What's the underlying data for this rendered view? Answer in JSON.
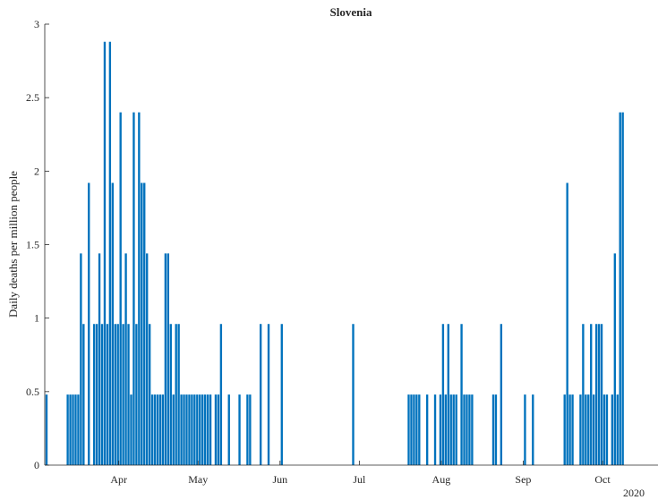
{
  "chart_data": {
    "type": "bar",
    "title": "Slovenia",
    "ylabel": "Daily deaths per million people",
    "xlabel": "",
    "ylim": [
      0,
      3
    ],
    "yticks": [
      0,
      0.5,
      1,
      1.5,
      2,
      2.5,
      3
    ],
    "ytick_labels": [
      "0",
      "0.5",
      "1",
      "1.5",
      "2",
      "2.5",
      "3"
    ],
    "xlim": [
      "2020-03-04",
      "2020-10-22"
    ],
    "xticks": [
      {
        "date": "2020-04-01",
        "label": "Apr"
      },
      {
        "date": "2020-05-01",
        "label": "May"
      },
      {
        "date": "2020-06-01",
        "label": "Jun"
      },
      {
        "date": "2020-07-01",
        "label": "Jul"
      },
      {
        "date": "2020-08-01",
        "label": "Aug"
      },
      {
        "date": "2020-09-01",
        "label": "Sep"
      },
      {
        "date": "2020-10-01",
        "label": "Oct"
      }
    ],
    "year_label": "2020",
    "bar_color": "#0072bd",
    "grid": false,
    "series": [
      {
        "name": "",
        "x": [
          "2020-03-04",
          "2020-03-12",
          "2020-03-13",
          "2020-03-14",
          "2020-03-15",
          "2020-03-16",
          "2020-03-17",
          "2020-03-18",
          "2020-03-20",
          "2020-03-22",
          "2020-03-23",
          "2020-03-24",
          "2020-03-25",
          "2020-03-26",
          "2020-03-27",
          "2020-03-28",
          "2020-03-29",
          "2020-03-30",
          "2020-03-31",
          "2020-04-01",
          "2020-04-02",
          "2020-04-03",
          "2020-04-04",
          "2020-04-05",
          "2020-04-06",
          "2020-04-07",
          "2020-04-08",
          "2020-04-09",
          "2020-04-10",
          "2020-04-11",
          "2020-04-12",
          "2020-04-13",
          "2020-04-14",
          "2020-04-15",
          "2020-04-16",
          "2020-04-17",
          "2020-04-18",
          "2020-04-19",
          "2020-04-20",
          "2020-04-21",
          "2020-04-22",
          "2020-04-23",
          "2020-04-24",
          "2020-04-25",
          "2020-04-26",
          "2020-04-27",
          "2020-04-28",
          "2020-04-29",
          "2020-04-30",
          "2020-05-01",
          "2020-05-02",
          "2020-05-03",
          "2020-05-04",
          "2020-05-05",
          "2020-05-07",
          "2020-05-08",
          "2020-05-09",
          "2020-05-12",
          "2020-05-16",
          "2020-05-19",
          "2020-05-20",
          "2020-05-24",
          "2020-05-27",
          "2020-06-01",
          "2020-06-28",
          "2020-07-19",
          "2020-07-20",
          "2020-07-21",
          "2020-07-22",
          "2020-07-23",
          "2020-07-26",
          "2020-07-29",
          "2020-07-31",
          "2020-08-01",
          "2020-08-02",
          "2020-08-03",
          "2020-08-04",
          "2020-08-05",
          "2020-08-06",
          "2020-08-08",
          "2020-08-09",
          "2020-08-10",
          "2020-08-11",
          "2020-08-12",
          "2020-08-20",
          "2020-08-21",
          "2020-08-23",
          "2020-09-01",
          "2020-09-04",
          "2020-09-16",
          "2020-09-17",
          "2020-09-18",
          "2020-09-19",
          "2020-09-22",
          "2020-09-23",
          "2020-09-24",
          "2020-09-25",
          "2020-09-26",
          "2020-09-27",
          "2020-09-28",
          "2020-09-29",
          "2020-09-30",
          "2020-10-01",
          "2020-10-02",
          "2020-10-04",
          "2020-10-05",
          "2020-10-06",
          "2020-10-07",
          "2020-10-08"
        ],
        "values": [
          0.48,
          0.48,
          0.48,
          0.48,
          0.48,
          0.48,
          1.44,
          0.96,
          1.92,
          0.96,
          0.96,
          1.44,
          0.96,
          2.88,
          0.96,
          2.88,
          1.92,
          0.96,
          0.96,
          2.4,
          0.96,
          1.44,
          0.96,
          0.48,
          2.4,
          0.96,
          2.4,
          1.92,
          1.92,
          1.44,
          0.96,
          0.48,
          0.48,
          0.48,
          0.48,
          0.48,
          1.44,
          1.44,
          0.96,
          0.48,
          0.96,
          0.96,
          0.48,
          0.48,
          0.48,
          0.48,
          0.48,
          0.48,
          0.48,
          0.48,
          0.48,
          0.48,
          0.48,
          0.48,
          0.48,
          0.48,
          0.96,
          0.48,
          0.48,
          0.48,
          0.48,
          0.96,
          0.96,
          0.96,
          0.96,
          0.48,
          0.48,
          0.48,
          0.48,
          0.48,
          0.48,
          0.48,
          0.48,
          0.96,
          0.48,
          0.96,
          0.48,
          0.48,
          0.48,
          0.96,
          0.48,
          0.48,
          0.48,
          0.48,
          0.48,
          0.48,
          0.96,
          0.48,
          0.48,
          0.48,
          1.92,
          0.48,
          0.48,
          0.48,
          0.96,
          0.48,
          0.48,
          0.96,
          0.48,
          0.96,
          0.96,
          0.96,
          0.48,
          0.48,
          0.48,
          1.44,
          0.48,
          2.4,
          2.4
        ]
      }
    ]
  }
}
